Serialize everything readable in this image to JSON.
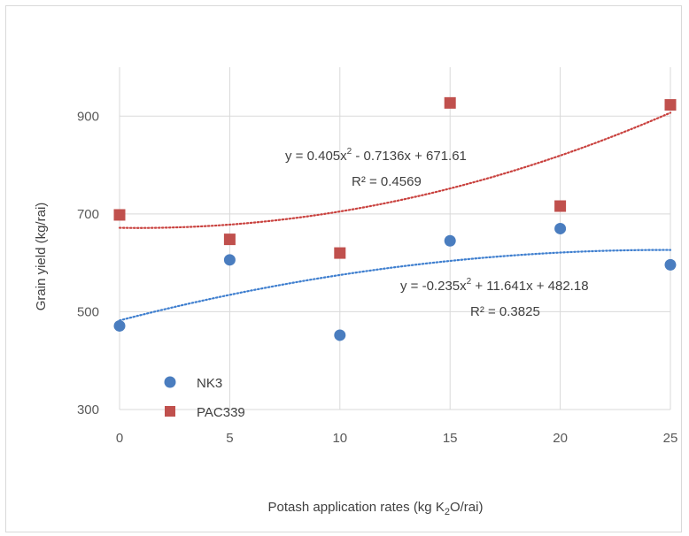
{
  "chart_data": {
    "type": "scatter",
    "xlabel_main": "Potash application rates (kg K",
    "xlabel_sub": "2",
    "xlabel_tail": "O/rai)",
    "ylabel": "Grain yield (kg/rai)",
    "xlim": [
      0,
      25
    ],
    "ylim": [
      300,
      1000
    ],
    "x_ticks": [
      0,
      5,
      10,
      15,
      20,
      25
    ],
    "y_ticks": [
      300,
      500,
      700,
      900
    ],
    "x_tick_labels": [
      "0",
      "5",
      "10",
      "15",
      "20",
      "25"
    ],
    "y_tick_labels": [
      "300",
      "500",
      "700",
      "900"
    ],
    "grid": true,
    "legend_position": "bottom-left",
    "series": [
      {
        "name": "NK3",
        "marker": "circle",
        "color": "#4a7dbf",
        "x": [
          0,
          5,
          10,
          15,
          20,
          25
        ],
        "y": [
          471,
          606,
          452,
          645,
          670,
          596
        ],
        "trendline": {
          "type": "polynomial-2",
          "coefficients": [
            -0.235,
            11.641,
            482.18
          ],
          "color": "#3f7fcf",
          "eq_lead": "y = -0.235x",
          "eq_exp": "2",
          "eq_tail": " + 11.641x + 482.18",
          "r2_text": "R² = 0.3825"
        }
      },
      {
        "name": "PAC339",
        "marker": "square",
        "color": "#c0504d",
        "x": [
          0,
          5,
          10,
          15,
          20,
          25
        ],
        "y": [
          698,
          648,
          620,
          927,
          716,
          923
        ],
        "trendline": {
          "type": "polynomial-2",
          "coefficients": [
            0.405,
            -0.7136,
            671.61
          ],
          "color": "#c9423f",
          "eq_lead": "y = 0.405x",
          "eq_exp": "2",
          "eq_tail": " - 0.7136x + 671.61",
          "r2_text": "R² = 0.4569"
        }
      }
    ]
  }
}
